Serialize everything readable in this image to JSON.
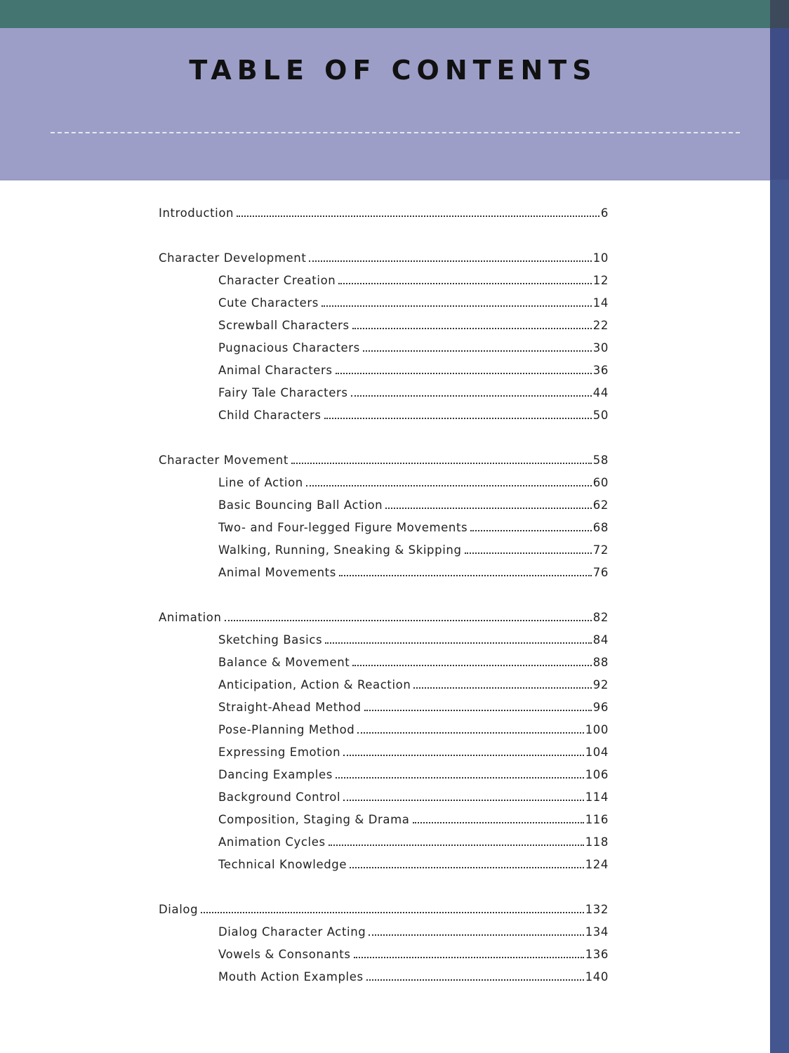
{
  "title": "TABLE OF CONTENTS",
  "entries": [
    {
      "label": "Introduction",
      "page": "6",
      "level": 0
    },
    {
      "label": "Character Development",
      "page": "10",
      "level": 0
    },
    {
      "label": "Character Creation",
      "page": "12",
      "level": 1
    },
    {
      "label": "Cute Characters",
      "page": "14",
      "level": 1
    },
    {
      "label": "Screwball Characters",
      "page": "22",
      "level": 1
    },
    {
      "label": "Pugnacious Characters",
      "page": "30",
      "level": 1
    },
    {
      "label": "Animal Characters",
      "page": "36",
      "level": 1
    },
    {
      "label": "Fairy Tale Characters",
      "page": "44",
      "level": 1
    },
    {
      "label": "Child Characters",
      "page": "50",
      "level": 1
    },
    {
      "label": "Character Movement",
      "page": "58",
      "level": 0
    },
    {
      "label": "Line of Action",
      "page": "60",
      "level": 1
    },
    {
      "label": "Basic Bouncing Ball Action",
      "page": "62",
      "level": 1
    },
    {
      "label": "Two- and Four-legged Figure Movements",
      "page": "68",
      "level": 1
    },
    {
      "label": "Walking, Running, Sneaking & Skipping",
      "page": "72",
      "level": 1
    },
    {
      "label": "Animal Movements",
      "page": "76",
      "level": 1
    },
    {
      "label": "Animation",
      "page": "82",
      "level": 0
    },
    {
      "label": "Sketching Basics",
      "page": "84",
      "level": 1
    },
    {
      "label": "Balance & Movement",
      "page": "88",
      "level": 1
    },
    {
      "label": "Anticipation, Action & Reaction",
      "page": "92",
      "level": 1
    },
    {
      "label": "Straight-Ahead Method",
      "page": "96",
      "level": 1
    },
    {
      "label": "Pose-Planning Method",
      "page": "100",
      "level": 1
    },
    {
      "label": "Expressing Emotion",
      "page": "104",
      "level": 1
    },
    {
      "label": "Dancing Examples",
      "page": "106",
      "level": 1
    },
    {
      "label": "Background Control",
      "page": "114",
      "level": 1
    },
    {
      "label": "Composition, Staging & Drama",
      "page": "116",
      "level": 1
    },
    {
      "label": "Animation Cycles",
      "page": "118",
      "level": 1
    },
    {
      "label": "Technical Knowledge",
      "page": "124",
      "level": 1
    },
    {
      "label": "Dialog",
      "page": "132",
      "level": 0
    },
    {
      "label": "Dialog Character Acting",
      "page": "134",
      "level": 1
    },
    {
      "label": "Vowels & Consonants",
      "page": "136",
      "level": 1
    },
    {
      "label": "Mouth Action Examples",
      "page": "140",
      "level": 1
    }
  ],
  "colors": {
    "top_bar": "#457571",
    "header": "#9c9ec8",
    "edge": "#43568f"
  }
}
